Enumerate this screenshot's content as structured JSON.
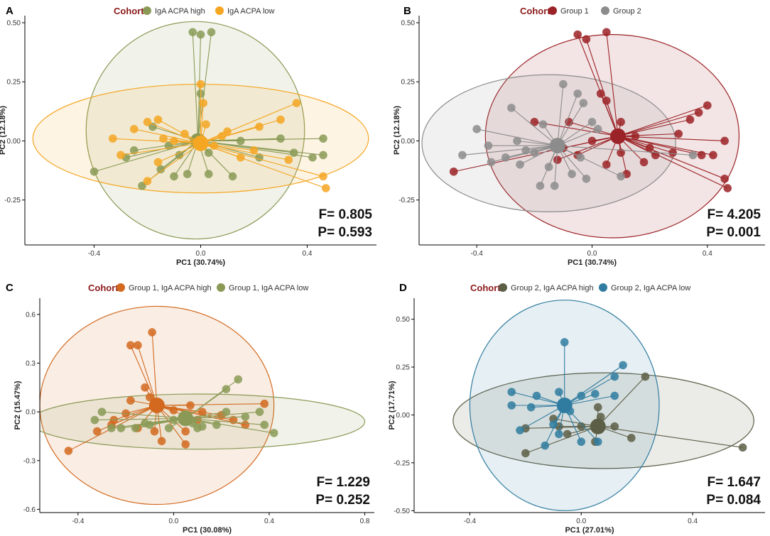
{
  "chart_data": [
    {
      "panel": "A",
      "type": "scatter",
      "subtype": "PCoA with group centroids and 95% ellipses",
      "legend": {
        "title": "Cohort",
        "title_color": "#8b1a1a",
        "position": "top"
      },
      "xlabel": "PC1 (30.74%)",
      "ylabel": "PC2 (12.18%)",
      "xlim": [
        -0.66,
        0.66
      ],
      "ylim": [
        -0.44,
        0.53
      ],
      "xticks": [
        "-0.4",
        "0.0",
        "0.4"
      ],
      "xtick_values": [
        -0.4,
        0.0,
        0.4
      ],
      "yticks": [
        "0.50",
        "0.25",
        "0.00",
        "-0.25"
      ],
      "ytick_values": [
        0.5,
        0.25,
        0.0,
        -0.25
      ],
      "stats": {
        "F": "F= 0.805",
        "P": "P= 0.593"
      },
      "series": [
        {
          "name": "IgA ACPA high",
          "color": "#8a9a56",
          "centroid": [
            -0.01,
            0.0
          ],
          "ellipse": {
            "cx": -0.02,
            "cy": 0.045,
            "rx": 0.41,
            "ry": 0.46
          },
          "points": [
            [
              -0.03,
              0.46
            ],
            [
              0.0,
              0.45
            ],
            [
              0.04,
              0.46
            ],
            [
              0.0,
              0.2
            ],
            [
              -0.4,
              -0.13
            ],
            [
              -0.28,
              -0.07
            ],
            [
              -0.22,
              -0.19
            ],
            [
              -0.15,
              -0.12
            ],
            [
              -0.1,
              -0.15
            ],
            [
              -0.08,
              -0.06
            ],
            [
              -0.05,
              -0.14
            ],
            [
              -0.12,
              -0.02
            ],
            [
              0.03,
              -0.05
            ],
            [
              0.03,
              -0.14
            ],
            [
              0.12,
              -0.15
            ],
            [
              0.15,
              0.0
            ],
            [
              0.22,
              -0.07
            ],
            [
              0.3,
              0.01
            ],
            [
              0.35,
              -0.05
            ],
            [
              0.46,
              0.01
            ],
            [
              0.46,
              -0.06
            ],
            [
              0.42,
              -0.07
            ],
            [
              -0.18,
              0.06
            ],
            [
              -0.25,
              -0.04
            ]
          ]
        },
        {
          "name": "IgA ACPA low",
          "color": "#f5a623",
          "centroid": [
            0.0,
            -0.01
          ],
          "ellipse": {
            "cx": 0.0,
            "cy": 0.01,
            "rx": 0.63,
            "ry": 0.23
          },
          "points": [
            [
              -0.33,
              0.01
            ],
            [
              -0.3,
              -0.06
            ],
            [
              -0.25,
              0.05
            ],
            [
              -0.2,
              0.08
            ],
            [
              -0.16,
              0.09
            ],
            [
              -0.16,
              -0.09
            ],
            [
              -0.14,
              0.01
            ],
            [
              -0.1,
              0.0
            ],
            [
              -0.06,
              0.03
            ],
            [
              0.0,
              0.24
            ],
            [
              0.01,
              0.16
            ],
            [
              0.02,
              0.07
            ],
            [
              0.05,
              -0.02
            ],
            [
              0.08,
              0.02
            ],
            [
              0.1,
              0.04
            ],
            [
              0.15,
              -0.07
            ],
            [
              0.22,
              0.06
            ],
            [
              0.3,
              0.09
            ],
            [
              0.33,
              -0.08
            ],
            [
              0.36,
              0.16
            ],
            [
              0.46,
              -0.15
            ],
            [
              0.47,
              -0.2
            ],
            [
              -0.2,
              -0.17
            ],
            [
              0.2,
              -0.04
            ]
          ]
        }
      ]
    },
    {
      "panel": "B",
      "type": "scatter",
      "subtype": "PCoA with group centroids and 95% ellipses",
      "legend": {
        "title": "Cohort",
        "title_color": "#8b1a1a",
        "position": "top"
      },
      "xlabel": "PC1 (30.74%)",
      "ylabel": "PC2 (12.18%)",
      "xlim": [
        -0.6,
        0.6
      ],
      "ylim": [
        -0.44,
        0.53
      ],
      "xticks": [
        "-0.4",
        "0.0",
        "0.4"
      ],
      "xtick_values": [
        -0.4,
        0.0,
        0.4
      ],
      "yticks": [
        "0.50",
        "0.25",
        "0.00",
        "-0.25"
      ],
      "yticks_values": [
        0.5,
        0.25,
        0.0,
        -0.25
      ],
      "stats": {
        "F": "F= 4.205",
        "P": "P= 0.001"
      },
      "series": [
        {
          "name": "Group 1",
          "color": "#9b2226",
          "centroid": [
            0.09,
            0.02
          ],
          "ellipse": {
            "cx": 0.07,
            "cy": 0.02,
            "rx": 0.44,
            "ry": 0.43
          },
          "points": [
            [
              -0.05,
              0.45
            ],
            [
              -0.02,
              0.43
            ],
            [
              0.05,
              0.46
            ],
            [
              0.03,
              0.2
            ],
            [
              0.05,
              0.17
            ],
            [
              0.1,
              0.08
            ],
            [
              -0.08,
              0.08
            ],
            [
              -0.1,
              -0.03
            ],
            [
              -0.05,
              -0.06
            ],
            [
              0.0,
              0.0
            ],
            [
              0.05,
              -0.1
            ],
            [
              0.1,
              -0.05
            ],
            [
              0.12,
              -0.14
            ],
            [
              0.15,
              0.02
            ],
            [
              0.2,
              -0.03
            ],
            [
              0.22,
              -0.06
            ],
            [
              0.28,
              -0.05
            ],
            [
              0.3,
              0.03
            ],
            [
              0.34,
              0.09
            ],
            [
              0.37,
              0.12
            ],
            [
              0.4,
              0.15
            ],
            [
              0.42,
              -0.06
            ],
            [
              0.46,
              0.0
            ],
            [
              0.46,
              -0.16
            ],
            [
              0.47,
              -0.2
            ],
            [
              0.38,
              -0.06
            ],
            [
              0.18,
              -0.09
            ],
            [
              -0.48,
              -0.13
            ],
            [
              -0.2,
              0.08
            ],
            [
              -0.12,
              -0.08
            ]
          ]
        },
        {
          "name": "Group 2",
          "color": "#8c8c8c",
          "centroid": [
            -0.12,
            -0.02
          ],
          "ellipse": {
            "cx": -0.15,
            "cy": -0.01,
            "rx": 0.44,
            "ry": 0.29
          },
          "points": [
            [
              -0.05,
              0.2
            ],
            [
              -0.03,
              0.16
            ],
            [
              -0.1,
              0.24
            ],
            [
              -0.28,
              0.14
            ],
            [
              -0.4,
              0.05
            ],
            [
              -0.36,
              -0.02
            ],
            [
              -0.26,
              0.0
            ],
            [
              -0.3,
              -0.07
            ],
            [
              -0.2,
              -0.05
            ],
            [
              -0.25,
              -0.1
            ],
            [
              -0.15,
              -0.11
            ],
            [
              -0.13,
              -0.19
            ],
            [
              -0.18,
              -0.19
            ],
            [
              -0.07,
              -0.14
            ],
            [
              -0.02,
              -0.16
            ],
            [
              -0.04,
              -0.07
            ],
            [
              0.02,
              0.05
            ],
            [
              0.0,
              0.08
            ],
            [
              -0.17,
              0.07
            ],
            [
              -0.45,
              -0.06
            ],
            [
              0.35,
              -0.06
            ],
            [
              0.1,
              -0.15
            ],
            [
              -0.35,
              -0.09
            ],
            [
              -0.23,
              -0.04
            ]
          ]
        }
      ]
    },
    {
      "panel": "C",
      "type": "scatter",
      "subtype": "PCoA with group centroids and 95% ellipses",
      "legend": {
        "title": "Cohort",
        "title_color": "#8b1a1a",
        "position": "top"
      },
      "xlabel": "PC1 (30.08%)",
      "ylabel": "PC2 (15.47%)",
      "xlim": [
        -0.56,
        0.84
      ],
      "ylim": [
        -0.62,
        0.7
      ],
      "xticks": [
        "-0.4",
        "0.0",
        "0.4",
        "0.8"
      ],
      "xtick_values": [
        -0.4,
        0.0,
        0.4,
        0.8
      ],
      "yticks": [
        "0.6",
        "0.3",
        "0.0",
        "-0.3",
        "-0.6"
      ],
      "ytick_values": [
        0.6,
        0.3,
        0.0,
        -0.3,
        -0.6
      ],
      "stats": {
        "F": "F= 1.229",
        "P": "P= 0.252"
      },
      "series": [
        {
          "name": "Group 1, IgA ACPA high",
          "color": "#d2691e",
          "centroid": [
            -0.07,
            0.04
          ],
          "ellipse": {
            "cx": -0.07,
            "cy": 0.04,
            "rx": 0.49,
            "ry": 0.61
          },
          "points": [
            [
              -0.09,
              0.49
            ],
            [
              -0.18,
              0.41
            ],
            [
              -0.15,
              0.41
            ],
            [
              -0.12,
              0.15
            ],
            [
              -0.1,
              0.09
            ],
            [
              -0.18,
              0.07
            ],
            [
              -0.2,
              -0.01
            ],
            [
              -0.25,
              -0.05
            ],
            [
              -0.32,
              -0.12
            ],
            [
              -0.44,
              -0.24
            ],
            [
              -0.15,
              -0.1
            ],
            [
              -0.05,
              -0.18
            ],
            [
              -0.08,
              -0.12
            ],
            [
              0.05,
              -0.2
            ],
            [
              0.05,
              -0.12
            ],
            [
              0.1,
              -0.05
            ],
            [
              0.12,
              0.0
            ],
            [
              0.2,
              -0.02
            ],
            [
              0.25,
              -0.05
            ],
            [
              0.3,
              -0.08
            ],
            [
              0.38,
              0.05
            ],
            [
              0.0,
              0.01
            ],
            [
              0.07,
              0.04
            ],
            [
              -0.26,
              -0.08
            ]
          ]
        },
        {
          "name": "Group 1, IgA ACPA low",
          "color": "#8a9a56",
          "centroid": [
            0.05,
            -0.04
          ],
          "ellipse": {
            "cx": 0.1,
            "cy": -0.06,
            "rx": 0.7,
            "ry": 0.17
          },
          "points": [
            [
              0.27,
              0.2
            ],
            [
              0.22,
              0.14
            ],
            [
              0.22,
              0.0
            ],
            [
              0.3,
              -0.03
            ],
            [
              0.36,
              0.0
            ],
            [
              0.38,
              -0.08
            ],
            [
              0.42,
              -0.13
            ],
            [
              0.18,
              -0.08
            ],
            [
              0.1,
              -0.1
            ],
            [
              0.08,
              -0.07
            ],
            [
              -0.1,
              -0.08
            ],
            [
              -0.16,
              -0.1
            ],
            [
              -0.22,
              -0.1
            ],
            [
              -0.26,
              -0.1
            ],
            [
              -0.33,
              -0.05
            ],
            [
              -0.3,
              0.0
            ],
            [
              -0.12,
              -0.07
            ],
            [
              -0.02,
              -0.1
            ],
            [
              0.0,
              -0.05
            ],
            [
              0.12,
              -0.09
            ]
          ]
        }
      ]
    },
    {
      "panel": "D",
      "type": "scatter",
      "subtype": "PCoA with group centroids and 95% ellipses",
      "legend": {
        "title": "Cohort",
        "title_color": "#8b1a1a",
        "position": "top"
      },
      "xlabel": "PC1 (27.01%)",
      "ylabel": "PC2 (17.71%)",
      "xlim": [
        -0.6,
        0.66
      ],
      "ylim": [
        -0.51,
        0.61
      ],
      "xticks": [
        "-0.4",
        "0.0",
        "0.4"
      ],
      "xtick_values": [
        -0.4,
        0.0,
        0.4
      ],
      "yticks": [
        "0.50",
        "0.25",
        "0.00",
        "-0.25",
        "-0.50"
      ],
      "ytick_values": [
        0.5,
        0.25,
        0.0,
        -0.25,
        -0.5
      ],
      "stats": {
        "F": "F= 1.647",
        "P": "P= 0.084"
      },
      "series": [
        {
          "name": "Group 2, IgA ACPA high",
          "color": "#5c5e45",
          "centroid": [
            0.06,
            -0.06
          ],
          "ellipse": {
            "cx": 0.08,
            "cy": -0.03,
            "rx": 0.54,
            "ry": 0.25
          },
          "points": [
            [
              0.23,
              0.2
            ],
            [
              0.06,
              0.04
            ],
            [
              0.07,
              -0.01
            ],
            [
              0.12,
              -0.06
            ],
            [
              0.18,
              -0.12
            ],
            [
              0.0,
              -0.06
            ],
            [
              -0.05,
              -0.1
            ],
            [
              -0.1,
              -0.02
            ],
            [
              -0.2,
              -0.07
            ],
            [
              -0.2,
              -0.2
            ],
            [
              0.05,
              -0.14
            ],
            [
              0.58,
              -0.17
            ],
            [
              -0.08,
              -0.06
            ]
          ]
        },
        {
          "name": "Group 2, IgA ACPA low",
          "color": "#2f7ca0",
          "centroid": [
            -0.06,
            0.05
          ],
          "ellipse": {
            "cx": -0.06,
            "cy": 0.05,
            "rx": 0.34,
            "ry": 0.55
          },
          "points": [
            [
              -0.06,
              0.38
            ],
            [
              -0.25,
              0.12
            ],
            [
              -0.25,
              0.05
            ],
            [
              -0.16,
              0.1
            ],
            [
              -0.08,
              0.12
            ],
            [
              0.0,
              0.1
            ],
            [
              0.05,
              0.11
            ],
            [
              0.12,
              0.2
            ],
            [
              0.15,
              0.26
            ],
            [
              0.12,
              0.1
            ],
            [
              -0.04,
              0.02
            ],
            [
              -0.1,
              -0.05
            ],
            [
              -0.18,
              0.04
            ],
            [
              -0.13,
              -0.16
            ],
            [
              -0.08,
              -0.1
            ],
            [
              0.0,
              -0.14
            ],
            [
              0.06,
              -0.14
            ],
            [
              -0.22,
              -0.08
            ],
            [
              -0.05,
              0.06
            ]
          ]
        }
      ]
    }
  ]
}
